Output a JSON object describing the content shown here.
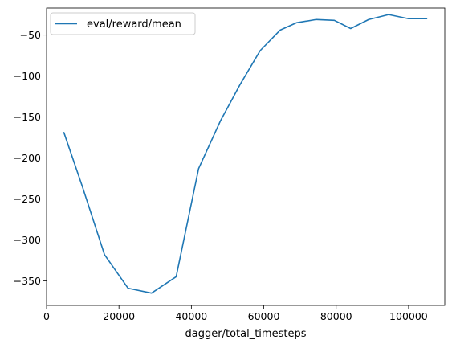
{
  "chart_data": {
    "type": "line",
    "title": "",
    "xlabel": "dagger/total_timesteps",
    "ylabel": "",
    "xlim": [
      0,
      110000
    ],
    "ylim": [
      -380,
      -17
    ],
    "x_ticks": [
      0,
      20000,
      40000,
      60000,
      80000,
      100000
    ],
    "x_tick_labels": [
      "0",
      "20000",
      "40000",
      "60000",
      "80000",
      "100000"
    ],
    "y_ticks": [
      -350,
      -300,
      -250,
      -200,
      -150,
      -100,
      -50
    ],
    "y_tick_labels": [
      "−350",
      "−300",
      "−250",
      "−200",
      "−150",
      "−100",
      "−50"
    ],
    "grid": false,
    "legend_position": "upper-left",
    "series": [
      {
        "name": "eval/reward/mean",
        "color": "#1f77b4",
        "x": [
          4800,
          9900,
          16000,
          22500,
          29000,
          35800,
          42000,
          48000,
          53500,
          59000,
          64500,
          69000,
          74500,
          79500,
          84000,
          89000,
          94500,
          100000,
          105000
        ],
        "y": [
          -169,
          -235,
          -318,
          -359,
          -365,
          -345,
          -213,
          -155,
          -110,
          -69,
          -44,
          -35,
          -31,
          -32,
          -42,
          -31,
          -25,
          -30,
          -30
        ]
      }
    ]
  }
}
